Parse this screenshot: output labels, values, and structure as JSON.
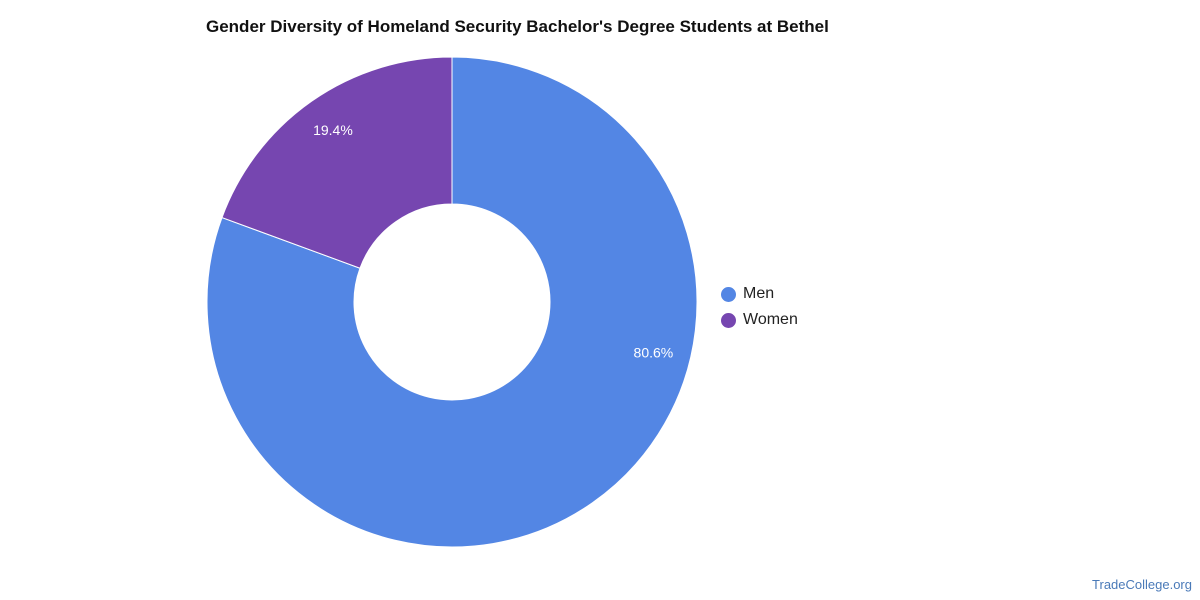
{
  "chart_data": {
    "type": "pie",
    "title": "Gender Diversity of Homeland Security Bachelor's Degree Students at Bethel",
    "series": [
      {
        "name": "Men",
        "value": 80.6,
        "label": "80.6%",
        "color": "#5386e4"
      },
      {
        "name": "Women",
        "value": 19.4,
        "label": "19.4%",
        "color": "#7646b0"
      }
    ],
    "donut": true,
    "legend_placement": "right"
  },
  "watermark": "TradeCollege.org"
}
